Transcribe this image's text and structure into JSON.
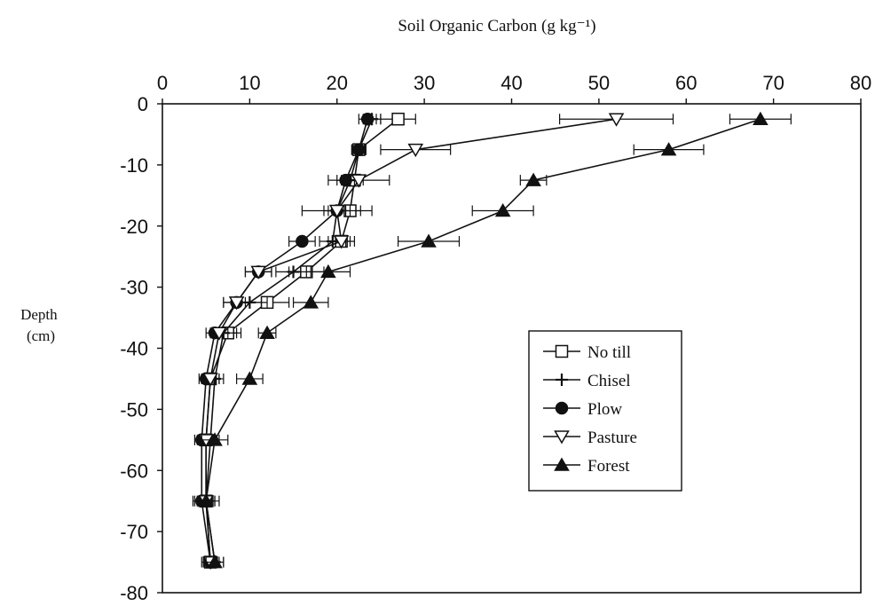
{
  "chart_data": {
    "type": "line",
    "title": "Soil Organic Carbon (g kg⁻¹)",
    "xlabel": "",
    "ylabel": "Depth (cm)",
    "ylabel_lines": [
      "Depth",
      "(cm)"
    ],
    "xlim": [
      0,
      80
    ],
    "ylim": [
      -80,
      0
    ],
    "x_ticks": [
      0,
      10,
      20,
      30,
      40,
      50,
      60,
      70,
      80
    ],
    "y_ticks": [
      0,
      -10,
      -20,
      -30,
      -40,
      -50,
      -60,
      -70,
      -80
    ],
    "x_axis_position": "top",
    "grid": false,
    "legend": {
      "position": "bottom-right",
      "entries": [
        "No till",
        "Chisel",
        "Plow",
        "Pasture",
        "Forest"
      ]
    },
    "series": [
      {
        "name": "No till",
        "marker": "open-square",
        "points": [
          {
            "x": 27,
            "y": -2.5,
            "err": 2
          },
          {
            "x": 22.5,
            "y": -7.5,
            "err": 0.8
          },
          {
            "x": 22,
            "y": -12.5,
            "err": 1
          },
          {
            "x": 21.5,
            "y": -17.5,
            "err": 1.2
          },
          {
            "x": 20.5,
            "y": -22.5,
            "err": 1
          },
          {
            "x": 16.5,
            "y": -27.5,
            "err": 2
          },
          {
            "x": 12,
            "y": -32.5,
            "err": 2.5
          },
          {
            "x": 7.5,
            "y": -37.5,
            "err": 1.5
          },
          {
            "x": 5.5,
            "y": -45,
            "err": 1
          },
          {
            "x": 5,
            "y": -55,
            "err": 0.8
          },
          {
            "x": 5,
            "y": -65,
            "err": 0.8
          },
          {
            "x": 5.5,
            "y": -75,
            "err": 0.8
          }
        ]
      },
      {
        "name": "Chisel",
        "marker": "plus",
        "points": [
          {
            "x": 24,
            "y": -2.5,
            "err": 1
          },
          {
            "x": 22.5,
            "y": -7.5,
            "err": 0.8
          },
          {
            "x": 21.5,
            "y": -12.5,
            "err": 1
          },
          {
            "x": 20,
            "y": -17.5,
            "err": 1.5
          },
          {
            "x": 19.5,
            "y": -22.5,
            "err": 1.5
          },
          {
            "x": 15,
            "y": -27.5,
            "err": 2
          },
          {
            "x": 10,
            "y": -32.5,
            "err": 2
          },
          {
            "x": 7,
            "y": -37.5,
            "err": 1.5
          },
          {
            "x": 6,
            "y": -45,
            "err": 1
          },
          {
            "x": 5.5,
            "y": -55,
            "err": 1
          },
          {
            "x": 5,
            "y": -65,
            "err": 1
          },
          {
            "x": 6,
            "y": -75,
            "err": 1
          }
        ]
      },
      {
        "name": "Plow",
        "marker": "filled-circle",
        "points": [
          {
            "x": 23.5,
            "y": -2.5,
            "err": 1
          },
          {
            "x": 22.5,
            "y": -7.5,
            "err": 0.8
          },
          {
            "x": 21,
            "y": -12.5,
            "err": 1
          },
          {
            "x": 20,
            "y": -17.5,
            "err": 1
          },
          {
            "x": 16,
            "y": -22.5,
            "err": 1.5
          },
          {
            "x": 11,
            "y": -27.5,
            "err": 1.5
          },
          {
            "x": 8.5,
            "y": -32.5,
            "err": 1.5
          },
          {
            "x": 6,
            "y": -37.5,
            "err": 1
          },
          {
            "x": 5,
            "y": -45,
            "err": 0.8
          },
          {
            "x": 4.5,
            "y": -55,
            "err": 0.8
          },
          {
            "x": 4.5,
            "y": -65,
            "err": 0.8
          },
          {
            "x": 5.5,
            "y": -75,
            "err": 0.8
          }
        ]
      },
      {
        "name": "Pasture",
        "marker": "open-triangle-down",
        "points": [
          {
            "x": 52,
            "y": -2.5,
            "err": 6.5
          },
          {
            "x": 29,
            "y": -7.5,
            "err": 4
          },
          {
            "x": 22.5,
            "y": -12.5,
            "err": 3.5
          },
          {
            "x": 20,
            "y": -17.5,
            "err": 4
          },
          {
            "x": 20.5,
            "y": -22.5,
            "err": 1.5
          },
          {
            "x": 11,
            "y": -27.5,
            "err": 1.5
          },
          {
            "x": 8.5,
            "y": -32.5,
            "err": 1.5
          },
          {
            "x": 6.5,
            "y": -37.5,
            "err": 1
          },
          {
            "x": 5.5,
            "y": -45,
            "err": 1
          },
          {
            "x": 5,
            "y": -55,
            "err": 1
          },
          {
            "x": 5,
            "y": -65,
            "err": 1
          },
          {
            "x": 5.5,
            "y": -75,
            "err": 1
          }
        ]
      },
      {
        "name": "Forest",
        "marker": "filled-triangle-up",
        "points": [
          {
            "x": 68.5,
            "y": -2.5,
            "err": 3.5
          },
          {
            "x": 58,
            "y": -7.5,
            "err": 4
          },
          {
            "x": 42.5,
            "y": -12.5,
            "err": 1.5
          },
          {
            "x": 39,
            "y": -17.5,
            "err": 3.5
          },
          {
            "x": 30.5,
            "y": -22.5,
            "err": 3.5
          },
          {
            "x": 19,
            "y": -27.5,
            "err": 2.5
          },
          {
            "x": 17,
            "y": -32.5,
            "err": 2
          },
          {
            "x": 12,
            "y": -37.5,
            "err": 1
          },
          {
            "x": 10,
            "y": -45,
            "err": 1.5
          },
          {
            "x": 6,
            "y": -55,
            "err": 1.5
          },
          {
            "x": 5,
            "y": -65,
            "err": 1.5
          },
          {
            "x": 6,
            "y": -75,
            "err": 1
          }
        ]
      }
    ]
  }
}
